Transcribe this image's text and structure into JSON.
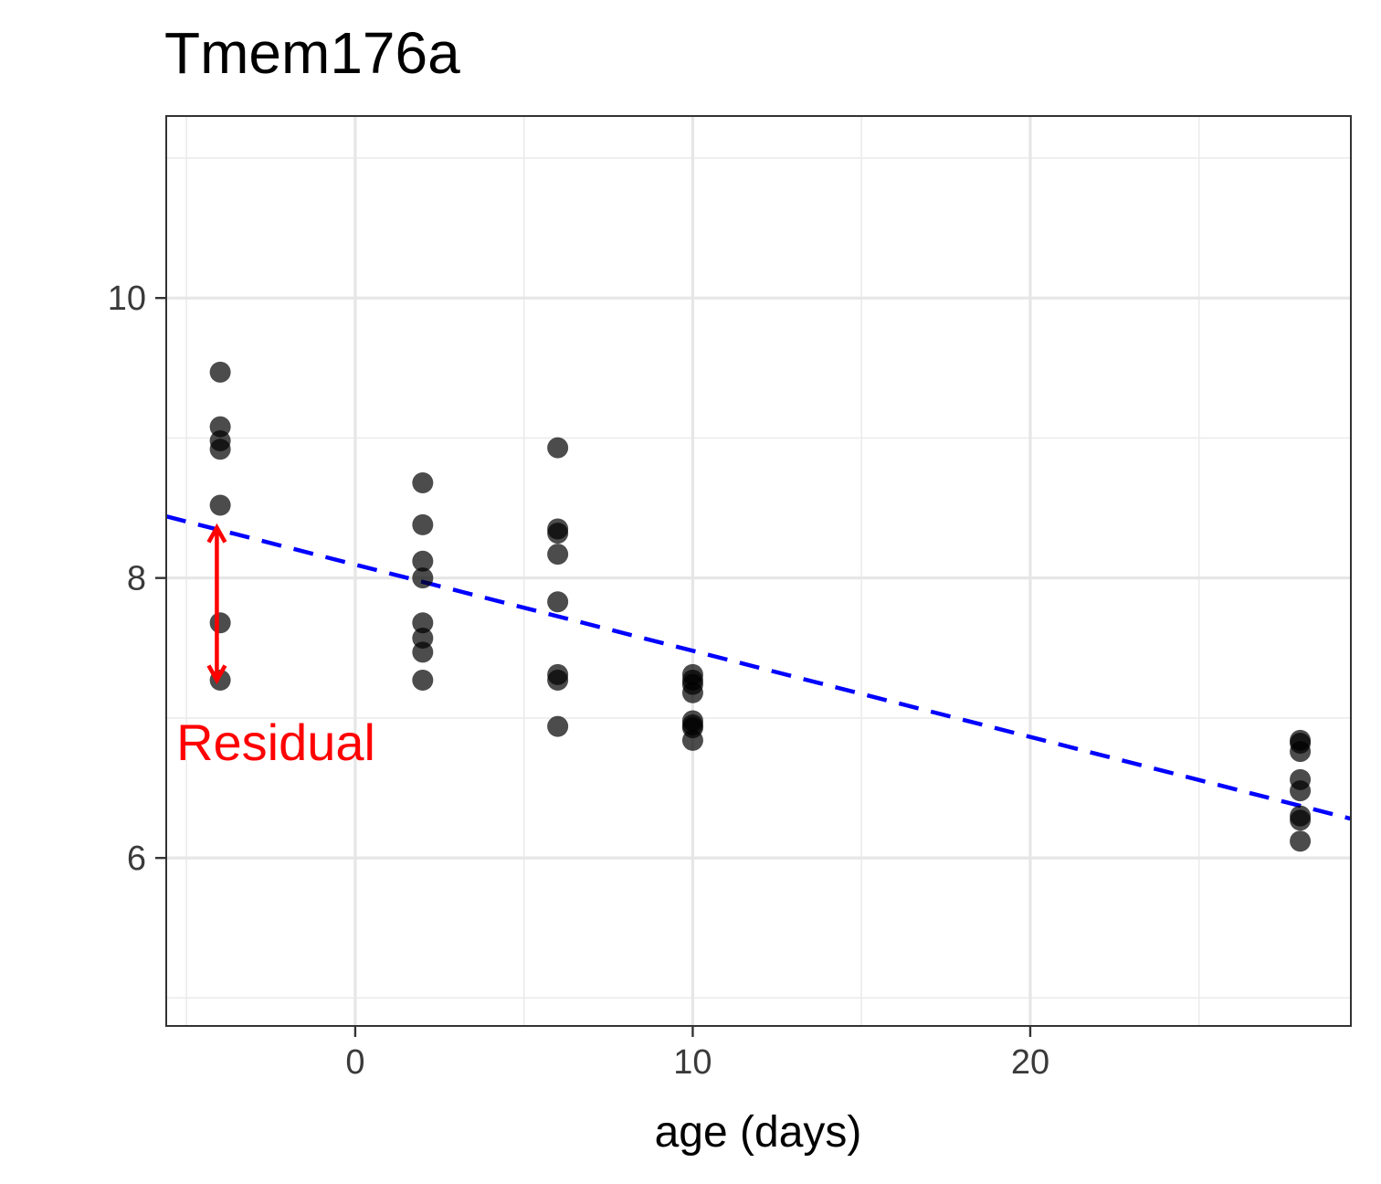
{
  "chart_data": {
    "type": "scatter",
    "title": "Tmem176a",
    "xlabel": "age (days)",
    "ylabel": "",
    "xlim": [
      -5.6,
      29.5
    ],
    "ylim": [
      4.8,
      11.3
    ],
    "x_major_ticks": [
      0,
      10,
      20
    ],
    "x_minor_ticks": [
      -5,
      5,
      15,
      25
    ],
    "y_major_ticks": [
      6,
      8,
      10
    ],
    "y_minor_ticks": [
      5,
      7,
      9,
      11
    ],
    "grid": true,
    "point_color": "#000000",
    "points": [
      {
        "x": -4,
        "y": 9.47
      },
      {
        "x": -4,
        "y": 9.08
      },
      {
        "x": -4,
        "y": 8.98
      },
      {
        "x": -4,
        "y": 8.92
      },
      {
        "x": -4,
        "y": 8.52
      },
      {
        "x": -4,
        "y": 7.68
      },
      {
        "x": -4,
        "y": 7.27
      },
      {
        "x": 2,
        "y": 8.68
      },
      {
        "x": 2,
        "y": 8.38
      },
      {
        "x": 2,
        "y": 8.12
      },
      {
        "x": 2,
        "y": 8.0
      },
      {
        "x": 2,
        "y": 7.68
      },
      {
        "x": 2,
        "y": 7.57
      },
      {
        "x": 2,
        "y": 7.47
      },
      {
        "x": 2,
        "y": 7.27
      },
      {
        "x": 6,
        "y": 8.93
      },
      {
        "x": 6,
        "y": 8.35
      },
      {
        "x": 6,
        "y": 8.32
      },
      {
        "x": 6,
        "y": 8.17
      },
      {
        "x": 6,
        "y": 7.83
      },
      {
        "x": 6,
        "y": 7.31
      },
      {
        "x": 6,
        "y": 7.27
      },
      {
        "x": 6,
        "y": 6.94
      },
      {
        "x": 10,
        "y": 7.31
      },
      {
        "x": 10,
        "y": 7.27
      },
      {
        "x": 10,
        "y": 7.24
      },
      {
        "x": 10,
        "y": 7.18
      },
      {
        "x": 10,
        "y": 6.98
      },
      {
        "x": 10,
        "y": 6.95
      },
      {
        "x": 10,
        "y": 6.93
      },
      {
        "x": 10,
        "y": 6.84
      },
      {
        "x": 28,
        "y": 6.84
      },
      {
        "x": 28,
        "y": 6.82
      },
      {
        "x": 28,
        "y": 6.76
      },
      {
        "x": 28,
        "y": 6.56
      },
      {
        "x": 28,
        "y": 6.48
      },
      {
        "x": 28,
        "y": 6.3
      },
      {
        "x": 28,
        "y": 6.27
      },
      {
        "x": 28,
        "y": 6.12
      }
    ],
    "trend_line": {
      "style": "dashed",
      "color": "#0000ff",
      "x": [
        -5.6,
        29.5
      ],
      "y": [
        8.44,
        6.28
      ]
    },
    "annotations": [
      {
        "text": "Residual",
        "color": "#ff0000",
        "x": -4.1,
        "y_from": 8.36,
        "y_to": 7.27,
        "text_x": -5.3,
        "text_y": 6.83
      }
    ]
  }
}
